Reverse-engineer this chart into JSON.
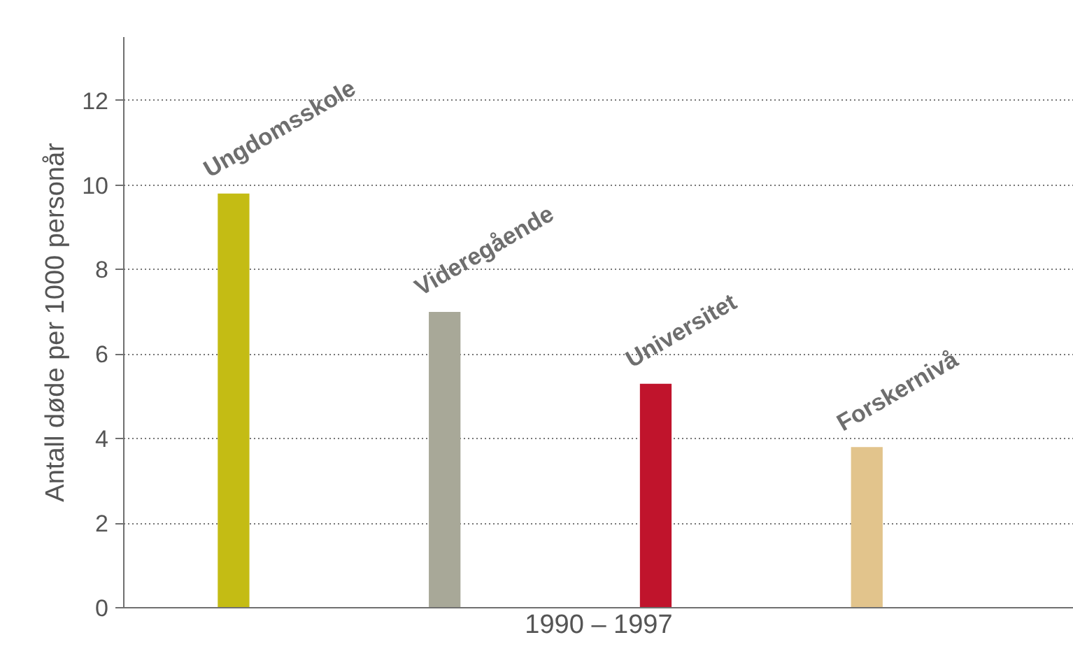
{
  "chart_data": {
    "type": "bar",
    "categories": [
      "Ungdomsskole",
      "Videregående",
      "Universitet",
      "Forskernivå"
    ],
    "values": [
      9.8,
      7.0,
      5.3,
      3.8
    ],
    "colors": [
      "#c4bc14",
      "#a8a898",
      "#c0142c",
      "#e2c48c"
    ],
    "xlabel": "1990 – 1997",
    "ylabel": "Antall døde per 1000 personår",
    "ylim": [
      0,
      13.5
    ],
    "yticks": [
      0,
      2,
      4,
      6,
      8,
      10,
      12
    ],
    "grid": "y",
    "tick_labels": "y"
  }
}
